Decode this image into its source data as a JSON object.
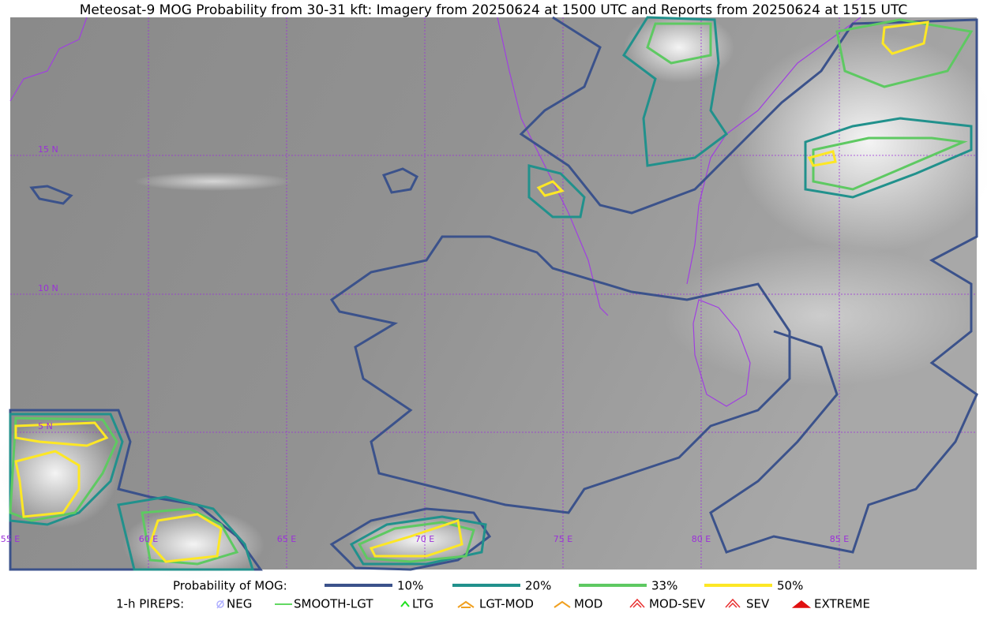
{
  "header": {
    "title": "Meteosat-9 MOG Probability from 30-31 kft: Imagery from 20250624 at 1500 UTC and Reports from 20250624 at 1515 UTC"
  },
  "map": {
    "lat_labels": [
      "15 N",
      "10 N",
      "5 N"
    ],
    "lon_labels": [
      "55 E",
      "60 E",
      "65 E",
      "70 E",
      "75 E",
      "80 E",
      "85 E"
    ]
  },
  "legend": {
    "probability": {
      "label": "Probability of MOG:",
      "items": [
        {
          "label": "10%",
          "color": "#3b528b"
        },
        {
          "label": "20%",
          "color": "#21918c"
        },
        {
          "label": "33%",
          "color": "#5ec962"
        },
        {
          "label": "50%",
          "color": "#fde725"
        }
      ]
    },
    "pireps": {
      "label": "1-h PIREPS:",
      "items": [
        "NEG",
        "SMOOTH-LGT",
        "LTG",
        "LGT-MOD",
        "MOD",
        "MOD-SEV",
        "SEV",
        "EXTREME"
      ]
    }
  }
}
